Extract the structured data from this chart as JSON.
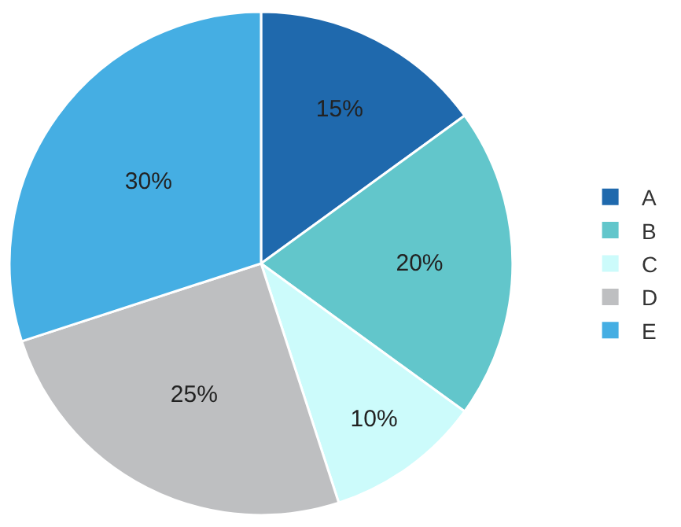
{
  "chart_data": {
    "type": "pie",
    "categories": [
      "A",
      "B",
      "C",
      "D",
      "E"
    ],
    "values": [
      15,
      20,
      10,
      25,
      30
    ],
    "colors": [
      "#1f69ad",
      "#62c6cb",
      "#ccfbfb",
      "#bebfc1",
      "#45aee3"
    ],
    "value_labels": [
      "15%",
      "20%",
      "10%",
      "25%",
      "30%"
    ],
    "legend": "right"
  }
}
